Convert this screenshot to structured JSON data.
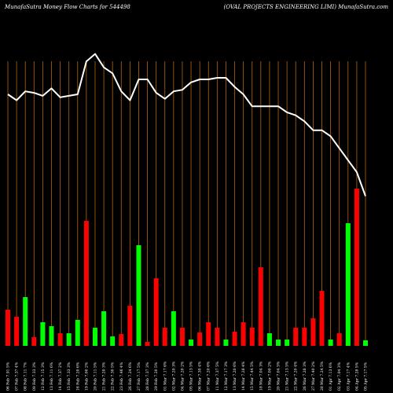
{
  "header": {
    "left": "MunafaSutra  Money Flow  Charts for 544498",
    "right": "(OVAL  PROJECTS ENGINEERING LIMI) MunafaSutra.com"
  },
  "chart_data": {
    "type": "bar",
    "colors": {
      "background": "#000000",
      "up": "#00ff00",
      "down": "#ff0000",
      "price_line": "#ffffff",
      "grid": "#b8660b"
    },
    "categories": [
      "06 Feb 2024",
      "07 Feb 2024",
      "08 Feb 2024",
      "09 Feb 2024",
      "12 Feb 2024",
      "13 Feb 2024",
      "14 Feb 2024",
      "15 Feb 2024",
      "16 Feb 2024",
      "19 Feb 2024",
      "20 Feb 2024",
      "21 Feb 2024",
      "22 Feb 2024",
      "23 Feb 2024",
      "26 Feb 2024",
      "27 Feb 2024",
      "28 Feb 2024",
      "29 Feb 2024",
      "01 Mar 2024",
      "02 Mar 2024",
      "04 Mar 2024",
      "05 Mar 2024",
      "06 Mar 2024",
      "07 Mar 2024",
      "11 Mar 2024",
      "12 Mar 2024",
      "13 Mar 2024",
      "14 Mar 2024",
      "15 Mar 2024",
      "18 Mar 2024",
      "19 Mar 2024",
      "20 Mar 2024",
      "21 Mar 2024",
      "22 Mar 2024",
      "26 Mar 2024",
      "27 Mar 2024",
      "28 Mar 2024",
      "01 Apr 2024",
      "02 Apr 2024",
      "03 Apr 2024",
      "04 Apr 2024",
      "05 Apr 2024"
    ],
    "tick_labels": [
      "06 Feb 7.91 5%",
      "07 Feb 7.37 4%",
      "08 Feb 7.11 7%",
      "09 Feb 7.33 3%",
      "12 Feb 7.15 3%",
      "13 Feb 7.11 6%",
      "14 Feb 7.37 2%",
      "15 Feb 7.33 3%",
      "16 Feb 7.20 6%",
      "19 Feb 7.00 2%",
      "20 Feb 7.11 5%",
      "21 Feb 7.20 3%",
      "22 Feb 7.30 5%",
      "23 Feb 7.46 4%",
      "26 Feb 7.24 6%",
      "27 Feb 7.17 5%",
      "28 Feb 7.37 3%",
      "29 Feb 7.20 5%",
      "01 Mar 7.17 6%",
      "02 Mar 7.20 3%",
      "04 Mar 7.20 2%",
      "05 Mar 7.13 5%",
      "06 Mar 7.30 4%",
      "07 Mar 7.20 6%",
      "11 Mar 7.37 5%",
      "12 Mar 7.17 3%",
      "13 Mar 7.20 6%",
      "14 Mar 7.28 4%",
      "15 Mar 7.44 5%",
      "18 Mar 7.04 3%",
      "19 Mar 7.00 2%",
      "20 Mar 7.04 5%",
      "21 Mar 7.13 5%",
      "22 Mar 7.20 4%",
      "26 Mar 7.28 3%",
      "27 Mar 7.40 2%",
      "28 Mar 7.24 5%",
      "01 Apr 7.13 6%",
      "02 Apr 7.04 3%",
      "03 Apr 7.17 4%",
      "04 Apr 7.28 5%",
      "05 Apr 7.17 5%"
    ],
    "flow_values": [
      46,
      37,
      62,
      11,
      30,
      25,
      16,
      16,
      33,
      159,
      23,
      44,
      12,
      15,
      51,
      128,
      5,
      86,
      23,
      44,
      23,
      8,
      17,
      30,
      23,
      8,
      18,
      30,
      23,
      100,
      16,
      8,
      8,
      23,
      23,
      35,
      70,
      8,
      16,
      156,
      200,
      7
    ],
    "flow_direction": [
      "down",
      "down",
      "up",
      "down",
      "up",
      "up",
      "down",
      "up",
      "up",
      "down",
      "up",
      "up",
      "up",
      "down",
      "down",
      "up",
      "down",
      "down",
      "down",
      "up",
      "down",
      "up",
      "down",
      "down",
      "down",
      "up",
      "down",
      "down",
      "down",
      "down",
      "up",
      "up",
      "up",
      "down",
      "down",
      "down",
      "down",
      "up",
      "down",
      "up",
      "down",
      "up"
    ],
    "price": [
      8.4,
      8.2,
      8.5,
      8.45,
      8.35,
      8.6,
      8.3,
      8.35,
      8.4,
      9.5,
      9.75,
      9.3,
      9.1,
      8.5,
      8.2,
      8.9,
      8.9,
      8.45,
      8.25,
      8.5,
      8.55,
      8.8,
      8.9,
      8.9,
      8.95,
      8.95,
      8.65,
      8.4,
      8.0,
      8.0,
      8.0,
      8.0,
      7.8,
      7.7,
      7.5,
      7.2,
      7.2,
      7.0,
      6.6,
      6.2,
      5.8,
      5.0
    ],
    "price_range": [
      0,
      10.5
    ],
    "grid": true,
    "legend": "none"
  }
}
